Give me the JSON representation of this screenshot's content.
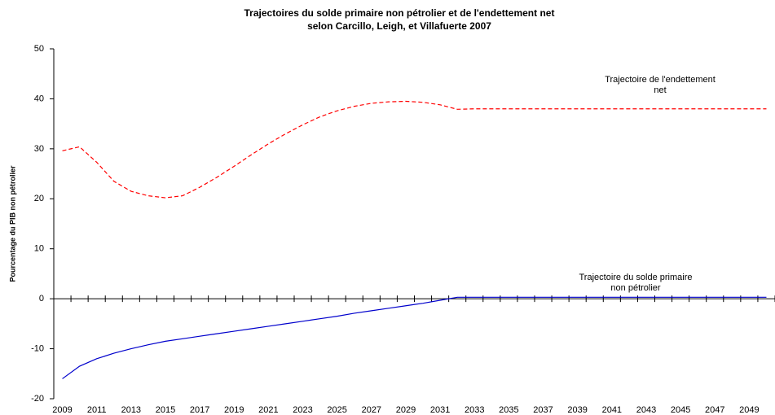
{
  "chart_data": {
    "type": "line",
    "title": [
      "Trajectoires du solde primaire non pétrolier et de l'endettement net",
      "selon Carcillo, Leigh, et Villafuerte 2007"
    ],
    "y_label": "Pourcentage du PIB non pétrolier",
    "categories": [
      "2009",
      null,
      "2011",
      null,
      "2013",
      null,
      "2015",
      null,
      "2017",
      null,
      "2019",
      null,
      "2021",
      null,
      "2023",
      null,
      "2025",
      null,
      "2027",
      null,
      "2029",
      null,
      "2031",
      null,
      "2033",
      null,
      "2035",
      null,
      "2037",
      null,
      "2039",
      null,
      "2041",
      null,
      "2043",
      null,
      "2045",
      null,
      "2047",
      null,
      "2049",
      null
    ],
    "series": [
      {
        "name": "Trajectoire de l'endettement net",
        "color": "#ff0000",
        "dash": true,
        "label_lines": [
          "Trajectoire de l'endettement",
          "net"
        ],
        "values": [
          29.6,
          30.4,
          27.3,
          23.5,
          21.5,
          20.6,
          20.2,
          20.6,
          22.3,
          24.3,
          26.5,
          28.8,
          31.0,
          33.0,
          34.8,
          36.4,
          37.6,
          38.5,
          39.1,
          39.4,
          39.5,
          39.3,
          38.8,
          37.9,
          38,
          38,
          38,
          38,
          38,
          38,
          38,
          38,
          38,
          38,
          38,
          38,
          38,
          38,
          38,
          38,
          38,
          38
        ]
      },
      {
        "name": "Trajectoire du solde primaire non pétrolier",
        "color": "#0000cc",
        "dash": false,
        "label_lines": [
          "Trajectoire du solde primaire",
          "non pétrolier"
        ],
        "values": [
          -16,
          -13.5,
          -12,
          -10.9,
          -10,
          -9.2,
          -8.5,
          -8.0,
          -7.5,
          -7.0,
          -6.5,
          -6.0,
          -5.5,
          -5.0,
          -4.5,
          -4.0,
          -3.5,
          -2.9,
          -2.4,
          -1.9,
          -1.4,
          -0.9,
          -0.3,
          0.3,
          0.3,
          0.3,
          0.3,
          0.3,
          0.3,
          0.3,
          0.3,
          0.3,
          0.3,
          0.3,
          0.3,
          0.3,
          0.3,
          0.3,
          0.3,
          0.3,
          0.3,
          0.3
        ]
      }
    ],
    "ylim": [
      -20,
      50
    ],
    "yticks": [
      -20,
      -10,
      0,
      10,
      20,
      30,
      40,
      50
    ]
  }
}
